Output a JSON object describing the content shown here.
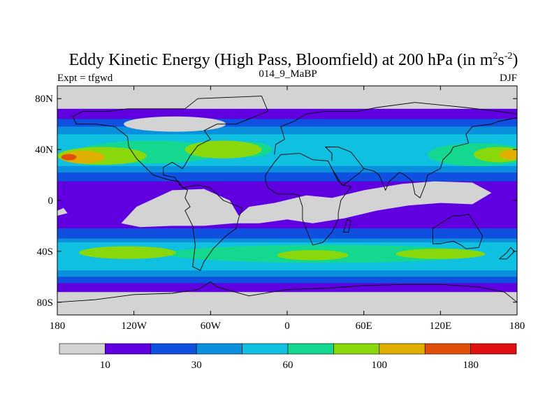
{
  "chart_data": {
    "type": "heatmap",
    "title": "Eddy Kinetic Energy (High Pass, Bloomfield) at 200 hPa (in m",
    "title_units": {
      "m_exp": "2",
      "s": "s",
      "s_exp": "-2",
      "close": ")"
    },
    "left_subtitle": "Expt = tfgwd",
    "center_subtitle": "014_9_MaBP",
    "right_subtitle": "DJF",
    "x_ticks": [
      "180",
      "120W",
      "60W",
      "0",
      "60E",
      "120E",
      "180"
    ],
    "y_ticks": [
      "80N",
      "40N",
      "0",
      "40S",
      "80S"
    ],
    "xlim": [
      -180,
      180
    ],
    "ylim": [
      -90,
      90
    ],
    "colorbar": {
      "colors": [
        "#d3d3d3",
        "#6000e0",
        "#1050e0",
        "#0a8fdc",
        "#10c0e0",
        "#14d890",
        "#88d80c",
        "#e0b000",
        "#e05008",
        "#e01010"
      ],
      "labels": [
        {
          "text": "10",
          "boundary": 1
        },
        {
          "text": "30",
          "boundary": 3
        },
        {
          "text": "60",
          "boundary": 5
        },
        {
          "text": "100",
          "boundary": 7
        },
        {
          "text": "180",
          "boundary": 9
        }
      ]
    },
    "bands": [
      {
        "level": 1,
        "lat": [
          -72,
          72
        ]
      },
      {
        "level": 2,
        "lat": [
          -65,
          -22
        ]
      },
      {
        "level": 2,
        "lat": [
          15,
          64
        ]
      },
      {
        "level": 3,
        "lat": [
          -60,
          -30
        ]
      },
      {
        "level": 3,
        "lat": [
          22,
          58
        ]
      },
      {
        "level": 4,
        "lat": [
          -55,
          -33
        ]
      },
      {
        "level": 4,
        "lat": [
          27,
          52
        ]
      }
    ],
    "blobs": [
      {
        "level": 0,
        "lon": -88,
        "lat": 60,
        "rx": 40,
        "ry": 6
      },
      {
        "level": 5,
        "lon": -108,
        "lat": 38,
        "rx": 55,
        "ry": 9
      },
      {
        "level": 6,
        "lon": -145,
        "lat": 35,
        "rx": 35,
        "ry": 7
      },
      {
        "level": 7,
        "lon": -160,
        "lat": 34,
        "rx": 17,
        "ry": 5
      },
      {
        "level": 8,
        "lon": -171,
        "lat": 34,
        "rx": 6,
        "ry": 2.5
      },
      {
        "level": 5,
        "lon": -30,
        "lat": 40,
        "rx": 18,
        "ry": 6
      },
      {
        "level": 6,
        "lon": -50,
        "lat": 40,
        "rx": 30,
        "ry": 7
      },
      {
        "level": 5,
        "lon": 150,
        "lat": 36,
        "rx": 40,
        "ry": 9
      },
      {
        "level": 6,
        "lon": 166,
        "lat": 36,
        "rx": 20,
        "ry": 6
      },
      {
        "level": 7,
        "lon": 176,
        "lat": 36,
        "rx": 10,
        "ry": 4
      },
      {
        "level": 5,
        "lon": 30,
        "lat": -42,
        "rx": 125,
        "ry": 7
      },
      {
        "level": 6,
        "lon": -125,
        "lat": -41,
        "rx": 38,
        "ry": 5
      },
      {
        "level": 6,
        "lon": 20,
        "lat": -43,
        "rx": 28,
        "ry": 4
      },
      {
        "level": 6,
        "lon": 120,
        "lat": -42,
        "rx": 35,
        "ry": 4
      }
    ],
    "tropics_gray": [
      [
        -130,
        -18
      ],
      [
        -118,
        -5
      ],
      [
        -90,
        8
      ],
      [
        -65,
        9
      ],
      [
        -45,
        0
      ],
      [
        -38,
        -12
      ],
      [
        -30,
        -5
      ],
      [
        -10,
        -2
      ],
      [
        15,
        4
      ],
      [
        35,
        2
      ],
      [
        60,
        8
      ],
      [
        90,
        13
      ],
      [
        115,
        15
      ],
      [
        145,
        14
      ],
      [
        160,
        6
      ],
      [
        145,
        -3
      ],
      [
        120,
        -2
      ],
      [
        95,
        -4
      ],
      [
        70,
        -8
      ],
      [
        45,
        -14
      ],
      [
        20,
        -18
      ],
      [
        0,
        -15
      ],
      [
        -22,
        -18
      ],
      [
        -42,
        -18
      ],
      [
        -65,
        -20
      ],
      [
        -90,
        -20
      ],
      [
        -115,
        -21
      ]
    ],
    "tropics_gray2": [
      [
        -180,
        -8
      ],
      [
        -175,
        -6
      ],
      [
        -172,
        -10
      ],
      [
        -180,
        -12
      ]
    ],
    "coast_segments": [
      [
        [
          -168,
          66
        ],
        [
          -160,
          70
        ],
        [
          -140,
          70
        ],
        [
          -125,
          72
        ],
        [
          -100,
          72
        ],
        [
          -80,
          72
        ],
        [
          -70,
          80
        ],
        [
          -20,
          82
        ],
        [
          -15,
          70
        ],
        [
          -40,
          60
        ],
        [
          -55,
          60
        ],
        [
          -65,
          55
        ],
        [
          -60,
          48
        ],
        [
          -70,
          43
        ],
        [
          -76,
          35
        ],
        [
          -80,
          28
        ],
        [
          -82,
          25
        ],
        [
          -90,
          30
        ],
        [
          -97,
          26
        ],
        [
          -97,
          20
        ],
        [
          -88,
          18
        ],
        [
          -84,
          12
        ],
        [
          -78,
          8
        ],
        [
          -80,
          2
        ],
        [
          -76,
          -5
        ],
        [
          -80,
          -8
        ],
        [
          -74,
          -20
        ],
        [
          -72,
          -35
        ],
        [
          -74,
          -52
        ],
        [
          -68,
          -55
        ],
        [
          -65,
          -48
        ],
        [
          -58,
          -38
        ],
        [
          -48,
          -28
        ],
        [
          -40,
          -22
        ],
        [
          -38,
          -14
        ],
        [
          -35,
          -6
        ],
        [
          -50,
          0
        ],
        [
          -60,
          10
        ],
        [
          -70,
          12
        ],
        [
          -82,
          10
        ],
        [
          -85,
          15
        ],
        [
          -92,
          16
        ],
        [
          -105,
          20
        ],
        [
          -110,
          25
        ],
        [
          -118,
          33
        ],
        [
          -124,
          42
        ],
        [
          -125,
          50
        ],
        [
          -135,
          58
        ],
        [
          -150,
          60
        ],
        [
          -165,
          60
        ],
        [
          -168,
          66
        ]
      ],
      [
        [
          -10,
          36
        ],
        [
          -9,
          44
        ],
        [
          -2,
          48
        ],
        [
          -5,
          58
        ],
        [
          5,
          62
        ],
        [
          15,
          68
        ],
        [
          30,
          70
        ],
        [
          55,
          70
        ],
        [
          70,
          73
        ],
        [
          100,
          77
        ],
        [
          140,
          73
        ],
        [
          165,
          70
        ],
        [
          180,
          68
        ]
      ],
      [
        [
          -17,
          15
        ],
        [
          -17,
          20
        ],
        [
          -10,
          30
        ],
        [
          -5,
          36
        ],
        [
          10,
          37
        ],
        [
          20,
          32
        ],
        [
          32,
          31
        ],
        [
          35,
          25
        ],
        [
          43,
          12
        ],
        [
          50,
          11
        ],
        [
          42,
          0
        ],
        [
          40,
          -10
        ],
        [
          40,
          -15
        ],
        [
          35,
          -25
        ],
        [
          28,
          -33
        ],
        [
          20,
          -35
        ],
        [
          17,
          -28
        ],
        [
          12,
          -15
        ],
        [
          12,
          -5
        ],
        [
          9,
          4
        ],
        [
          5,
          5
        ],
        [
          -8,
          5
        ],
        [
          -15,
          10
        ],
        [
          -17,
          15
        ]
      ],
      [
        [
          35,
          31
        ],
        [
          35,
          37
        ],
        [
          30,
          42
        ],
        [
          40,
          42
        ],
        [
          50,
          38
        ],
        [
          60,
          25
        ],
        [
          57,
          22
        ],
        [
          52,
          18
        ],
        [
          44,
          12
        ],
        [
          40,
          15
        ],
        [
          35,
          25
        ]
      ],
      [
        [
          60,
          25
        ],
        [
          68,
          23
        ],
        [
          72,
          20
        ],
        [
          77,
          8
        ],
        [
          80,
          15
        ],
        [
          88,
          22
        ],
        [
          92,
          20
        ],
        [
          98,
          15
        ],
        [
          100,
          5
        ],
        [
          104,
          2
        ],
        [
          108,
          12
        ],
        [
          110,
          20
        ],
        [
          120,
          25
        ],
        [
          122,
          32
        ],
        [
          128,
          38
        ],
        [
          130,
          42
        ],
        [
          142,
          45
        ],
        [
          140,
          52
        ],
        [
          145,
          58
        ],
        [
          160,
          60
        ],
        [
          165,
          62
        ],
        [
          180,
          65
        ]
      ],
      [
        [
          114,
          -22
        ],
        [
          114,
          -34
        ],
        [
          120,
          -34
        ],
        [
          130,
          -32
        ],
        [
          136,
          -35
        ],
        [
          140,
          -38
        ],
        [
          150,
          -37
        ],
        [
          153,
          -28
        ],
        [
          145,
          -15
        ],
        [
          142,
          -11
        ],
        [
          136,
          -12
        ],
        [
          130,
          -12
        ],
        [
          125,
          -15
        ],
        [
          114,
          -22
        ]
      ],
      [
        [
          166,
          -46
        ],
        [
          172,
          -41
        ],
        [
          175,
          -37
        ],
        [
          178,
          -40
        ],
        [
          172,
          -46
        ],
        [
          166,
          -46
        ]
      ],
      [
        [
          -180,
          -80
        ],
        [
          -150,
          -78
        ],
        [
          -120,
          -74
        ],
        [
          -90,
          -73
        ],
        [
          -70,
          -70
        ],
        [
          -60,
          -64
        ],
        [
          -55,
          -68
        ],
        [
          -30,
          -75
        ],
        [
          0,
          -70
        ],
        [
          30,
          -69
        ],
        [
          60,
          -67
        ],
        [
          90,
          -66
        ],
        [
          120,
          -66
        ],
        [
          150,
          -68
        ],
        [
          170,
          -72
        ],
        [
          180,
          -80
        ]
      ],
      [
        [
          44,
          -25
        ],
        [
          47,
          -15
        ],
        [
          50,
          -16
        ],
        [
          48,
          -25
        ],
        [
          44,
          -25
        ]
      ]
    ]
  }
}
